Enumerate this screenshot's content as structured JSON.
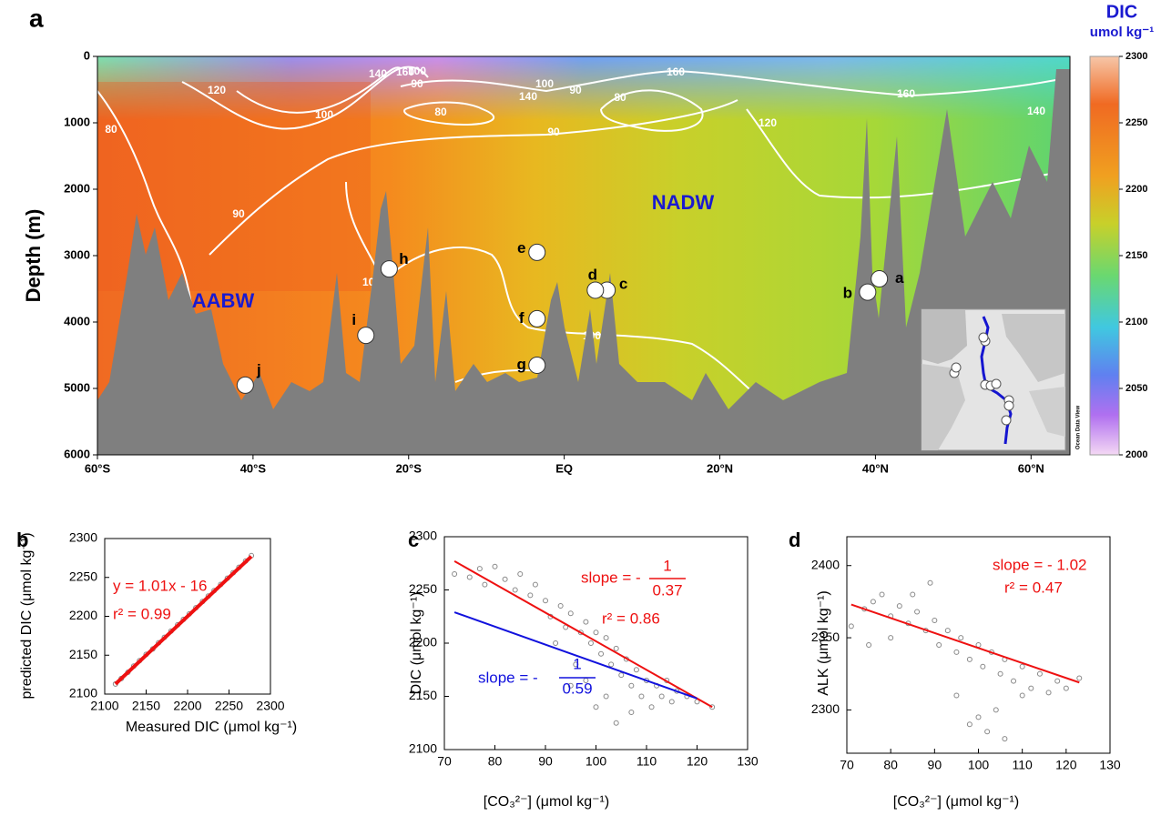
{
  "chart_data": [
    {
      "type": "section",
      "panel_label": "a",
      "ylabel": "Depth (m)",
      "xlim": [
        -60,
        65
      ],
      "xticks": [
        {
          "value": -60,
          "label": "60°S"
        },
        {
          "value": -40,
          "label": "40°S"
        },
        {
          "value": -20,
          "label": "20°S"
        },
        {
          "value": 0,
          "label": "EQ"
        },
        {
          "value": 20,
          "label": "20°N"
        },
        {
          "value": 40,
          "label": "40°N"
        },
        {
          "value": 60,
          "label": "60°N"
        }
      ],
      "ylim": [
        6000,
        0
      ],
      "yticks": [
        0,
        1000,
        2000,
        3000,
        4000,
        5000,
        6000
      ],
      "stations": {
        "labels": [
          "a",
          "b",
          "c",
          "d",
          "e",
          "f",
          "g",
          "h",
          "i",
          "j"
        ],
        "x": [
          40.5,
          39,
          5.5,
          4,
          -3.5,
          -3.5,
          -3.5,
          -22.5,
          -25.5,
          -41
        ],
        "values": [
          3350,
          3550,
          3520,
          3520,
          2950,
          3950,
          4650,
          3200,
          4200,
          4950
        ]
      },
      "contour_labels": [
        160,
        140,
        90,
        100,
        140,
        100,
        90,
        80,
        160,
        160,
        120,
        100,
        80,
        90,
        120,
        140,
        80,
        90,
        20,
        100,
        100
      ],
      "annotations": [
        "AABW",
        "NADW",
        "Ocean Data View"
      ],
      "colorbar": {
        "title": "DIC",
        "unit": "umol kg⁻¹",
        "lim": [
          2000,
          2300
        ],
        "ticks": [
          2000,
          2050,
          2100,
          2150,
          2200,
          2250,
          2300
        ]
      }
    },
    {
      "type": "scatter",
      "panel_label": "b",
      "xlabel": "Measured DIC (μmol kg⁻¹)",
      "ylabel": "predicted DIC  (μmol kg⁻¹)",
      "xlim": [
        2100,
        2300
      ],
      "xticks": [
        2100,
        2150,
        2200,
        2250,
        2300
      ],
      "ylim": [
        2100,
        2300
      ],
      "yticks": [
        2100,
        2150,
        2200,
        2250,
        2300
      ],
      "series": [
        {
          "color": "#888888",
          "x": [
            2113,
            2120,
            2128,
            2135,
            2142,
            2150,
            2158,
            2165,
            2172,
            2180,
            2188,
            2195,
            2202,
            2210,
            2218,
            2225,
            2232,
            2240,
            2248,
            2255,
            2262,
            2270,
            2277
          ],
          "values": [
            2113,
            2120,
            2128,
            2136,
            2143,
            2151,
            2158,
            2166,
            2173,
            2181,
            2189,
            2196,
            2203,
            2211,
            2219,
            2226,
            2233,
            2241,
            2249,
            2256,
            2263,
            2271,
            2278
          ]
        }
      ],
      "lines": [
        {
          "color": "#ee1111",
          "x": [
            2113,
            2277
          ],
          "values": [
            2113,
            2277
          ]
        }
      ],
      "annotations": [
        {
          "text": "y = 1.01x - 16",
          "color": "#ee1111"
        },
        {
          "text": "r² = 0.99",
          "color": "#ee1111"
        }
      ]
    },
    {
      "type": "scatter",
      "panel_label": "c",
      "xlabel": "[CO₃²⁻] (μmol kg⁻¹)",
      "ylabel": "DIC (μmol kg⁻¹)",
      "xlim": [
        70,
        130
      ],
      "xticks": [
        70,
        80,
        90,
        100,
        110,
        120,
        130
      ],
      "ylim": [
        2100,
        2300
      ],
      "yticks": [
        2100,
        2150,
        2200,
        2250,
        2300
      ],
      "series": [
        {
          "color": "#888888",
          "x": [
            72,
            75,
            77,
            78,
            80,
            82,
            84,
            85,
            87,
            88,
            90,
            91,
            93,
            94,
            95,
            97,
            98,
            99,
            100,
            101,
            102,
            103,
            104,
            105,
            106,
            107,
            108,
            109,
            110,
            111,
            112,
            113,
            114,
            115,
            116,
            118,
            120,
            123,
            95,
            100,
            104,
            107,
            102,
            98,
            96,
            92
          ],
          "values": [
            2265,
            2262,
            2270,
            2255,
            2272,
            2260,
            2250,
            2265,
            2245,
            2255,
            2240,
            2225,
            2235,
            2215,
            2228,
            2210,
            2220,
            2200,
            2210,
            2190,
            2205,
            2180,
            2195,
            2170,
            2185,
            2160,
            2175,
            2150,
            2165,
            2140,
            2160,
            2150,
            2165,
            2145,
            2155,
            2150,
            2145,
            2140,
            2160,
            2140,
            2125,
            2135,
            2150,
            2165,
            2180,
            2200
          ]
        }
      ],
      "lines": [
        {
          "color": "#ee1111",
          "x": [
            72,
            123
          ],
          "values": [
            2277,
            2140
          ]
        },
        {
          "color": "#1111dd",
          "x": [
            72,
            120
          ],
          "values": [
            2229,
            2148
          ]
        }
      ],
      "annotations": [
        {
          "text": "slope = -",
          "color": "#ee1111"
        },
        {
          "text": "1",
          "color": "#ee1111"
        },
        {
          "text": "0.37",
          "color": "#ee1111"
        },
        {
          "text": "r² = 0.86",
          "color": "#ee1111"
        },
        {
          "text": "slope = -",
          "color": "#1111dd"
        },
        {
          "text": "1",
          "color": "#1111dd"
        },
        {
          "text": "0.59",
          "color": "#1111dd"
        }
      ]
    },
    {
      "type": "scatter",
      "panel_label": "d",
      "xlabel": "[CO₃²⁻] (μmol kg⁻¹)",
      "ylabel": "ALK (μmol kg⁻¹)",
      "xlim": [
        70,
        130
      ],
      "xticks": [
        70,
        80,
        90,
        100,
        110,
        120,
        130
      ],
      "ylim": [
        2270,
        2420
      ],
      "yticks": [
        2300,
        2350,
        2400
      ],
      "series": [
        {
          "color": "#888888",
          "x": [
            71,
            74,
            76,
            78,
            80,
            82,
            84,
            86,
            88,
            90,
            91,
            93,
            95,
            96,
            98,
            100,
            101,
            103,
            105,
            106,
            108,
            110,
            112,
            114,
            116,
            118,
            120,
            123,
            75,
            85,
            89,
            100,
            102,
            104,
            106,
            98,
            95,
            80,
            110
          ],
          "values": [
            2358,
            2370,
            2375,
            2380,
            2365,
            2372,
            2360,
            2368,
            2355,
            2362,
            2345,
            2355,
            2340,
            2350,
            2335,
            2345,
            2330,
            2340,
            2325,
            2335,
            2320,
            2330,
            2315,
            2325,
            2312,
            2320,
            2315,
            2322,
            2345,
            2380,
            2388,
            2295,
            2285,
            2300,
            2280,
            2290,
            2310,
            2350,
            2310
          ]
        }
      ],
      "lines": [
        {
          "color": "#ee1111",
          "x": [
            71,
            123
          ],
          "values": [
            2373,
            2319
          ]
        }
      ],
      "annotations": [
        {
          "text": "slope = - 1.02",
          "color": "#ee1111"
        },
        {
          "text": "r² = 0.47",
          "color": "#ee1111"
        }
      ]
    }
  ]
}
